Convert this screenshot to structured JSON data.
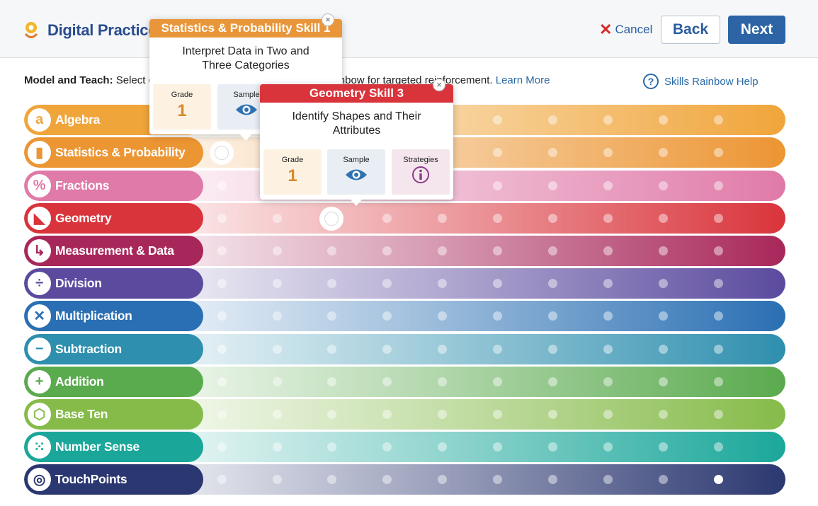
{
  "header": {
    "app_title": "Digital Practice",
    "cancel_label": "Cancel",
    "back_label": "Back",
    "next_label": "Next"
  },
  "instruction": {
    "bold": "Model and Teach:",
    "text_left": " Select c",
    "text_right": "ainbow for targeted reinforcement.",
    "link": "Learn More"
  },
  "help": {
    "label": "Skills Rainbow Help",
    "icon": "question-circle-icon"
  },
  "rows": [
    {
      "label": "Algebra",
      "icon": "algebra-icon",
      "glyph": "a",
      "color": "#f0a53a"
    },
    {
      "label": "Statistics & Probability",
      "icon": "bar-chart-icon",
      "glyph": "▮",
      "color": "#ec9533"
    },
    {
      "label": "Fractions",
      "icon": "percent-icon",
      "glyph": "%",
      "color": "#e07aa8"
    },
    {
      "label": "Geometry",
      "icon": "triangle-icon",
      "glyph": "◣",
      "color": "#d9343b"
    },
    {
      "label": "Measurement & Data",
      "icon": "ruler-angle-icon",
      "glyph": "↳",
      "color": "#a8275a"
    },
    {
      "label": "Division",
      "icon": "division-icon",
      "glyph": "÷",
      "color": "#5b4a9e"
    },
    {
      "label": "Multiplication",
      "icon": "times-icon",
      "glyph": "✕",
      "color": "#2a6fb3"
    },
    {
      "label": "Subtraction",
      "icon": "minus-icon",
      "glyph": "−",
      "color": "#2e8fae"
    },
    {
      "label": "Addition",
      "icon": "plus-icon",
      "glyph": "+",
      "color": "#5aaa4e"
    },
    {
      "label": "Base Ten",
      "icon": "cube-icon",
      "glyph": "⬡",
      "color": "#86bb4a"
    },
    {
      "label": "Number Sense",
      "icon": "dots-icon",
      "glyph": "⁙",
      "color": "#1aa79a"
    },
    {
      "label": "TouchPoints",
      "icon": "target-icon",
      "glyph": "◎",
      "color": "#2b3770"
    }
  ],
  "popup_stats": {
    "title": "Statistics & Probability Skill 1",
    "description": "Interpret Data in Two and Three Categories",
    "grade_label": "Grade",
    "grade_value": "1",
    "sample_label": "Sample",
    "color": "#e9963a"
  },
  "popup_geometry": {
    "title": "Geometry Skill 3",
    "description": "Identify Shapes and Their Attributes",
    "grade_label": "Grade",
    "grade_value": "1",
    "sample_label": "Sample",
    "strategies_label": "Strategies",
    "color": "#d9343b"
  }
}
